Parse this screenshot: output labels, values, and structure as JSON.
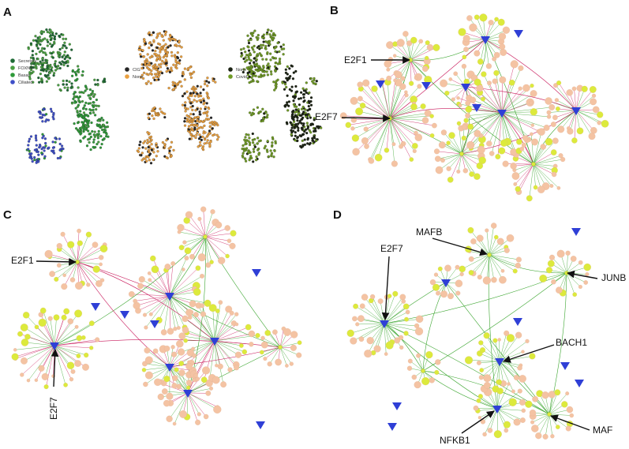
{
  "colors": {
    "node_peach": "#f4c3a3",
    "node_yellow": "#dcea3c",
    "hub_blue": "#2f3fd6",
    "edge_green": "#3aa52e",
    "edge_red": "#c8175a",
    "umap_secretory": "#1f6b35",
    "umap_foxn4": "#4aa042",
    "umap_basal": "#2f9a3a",
    "umap_ciliated": "#3e4fc8",
    "umap_cig": "#262626",
    "umap_none_orange": "#e9a040",
    "umap_none_dark": "#1c2314",
    "umap_covid": "#6f9a25"
  },
  "panels": [
    {
      "id": "A",
      "letter": "A"
    },
    {
      "id": "B",
      "letter": "B"
    },
    {
      "id": "C",
      "letter": "C"
    },
    {
      "id": "D",
      "letter": "D"
    }
  ],
  "umap_legends": [
    {
      "id": "celltype",
      "items": [
        {
          "label": "Secretory",
          "color": "#1f6b35"
        },
        {
          "label": "FOXN4",
          "color": "#4aa042"
        },
        {
          "label": "Basal",
          "color": "#2f9a3a"
        },
        {
          "label": "Ciliated",
          "color": "#3e4fc8"
        }
      ]
    },
    {
      "id": "cig",
      "items": [
        {
          "label": "CIG",
          "color": "#262626"
        },
        {
          "label": "None",
          "color": "#e9a040"
        }
      ]
    },
    {
      "id": "covid",
      "items": [
        {
          "label": "None",
          "color": "#1c2314"
        },
        {
          "label": "Covid",
          "color": "#6f9a25"
        }
      ]
    }
  ],
  "annotations": {
    "B": [
      {
        "id": "e2f1",
        "text": "E2F1"
      },
      {
        "id": "e2f7",
        "text": "E2F7"
      }
    ],
    "C": [
      {
        "id": "e2f1",
        "text": "E2F1"
      },
      {
        "id": "e2f7",
        "text": "E2F7"
      }
    ],
    "D": [
      {
        "id": "mafb",
        "text": "MAFB"
      },
      {
        "id": "e2f7",
        "text": "E2F7"
      },
      {
        "id": "junb",
        "text": "JUNB"
      },
      {
        "id": "bach1",
        "text": "BACH1"
      },
      {
        "id": "nfkb1",
        "text": "NFKB1"
      },
      {
        "id": "maf",
        "text": "MAF"
      }
    ]
  }
}
